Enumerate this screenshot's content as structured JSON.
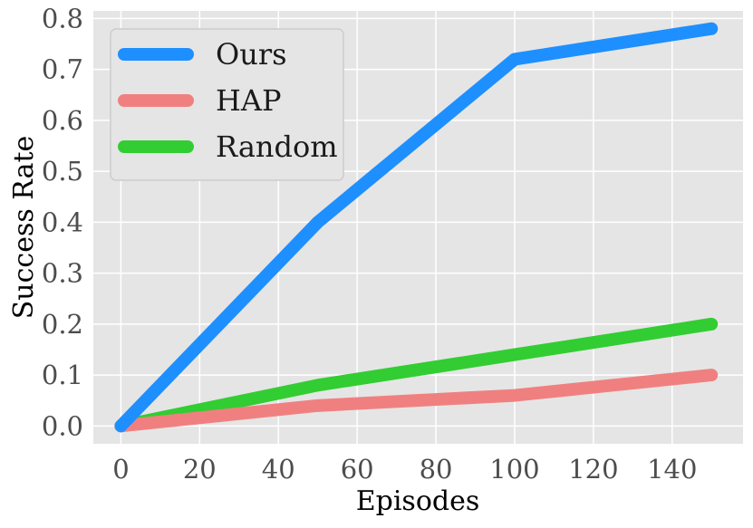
{
  "chart_data": {
    "type": "line",
    "xlabel": "Episodes",
    "ylabel": "Success Rate",
    "xlim": [
      -7,
      158
    ],
    "ylim": [
      -0.035,
      0.815
    ],
    "xticks": [
      0,
      20,
      40,
      60,
      80,
      100,
      120,
      140
    ],
    "yticks": [
      0.0,
      0.1,
      0.2,
      0.3,
      0.4,
      0.5,
      0.6,
      0.7,
      0.8
    ],
    "ytick_labels": [
      "0.0",
      "0.1",
      "0.2",
      "0.3",
      "0.4",
      "0.5",
      "0.6",
      "0.7",
      "0.8"
    ],
    "grid": true,
    "legend_position": "top-left",
    "x": [
      0,
      50,
      100,
      150
    ],
    "series": [
      {
        "name": "Ours",
        "values": [
          0.0,
          0.4,
          0.72,
          0.78
        ],
        "color": "#1e8fff"
      },
      {
        "name": "HAP",
        "values": [
          0.0,
          0.04,
          0.06,
          0.1
        ],
        "color": "#f08080"
      },
      {
        "name": "Random",
        "values": [
          0.0,
          0.08,
          0.14,
          0.2
        ],
        "color": "#32cd32"
      }
    ]
  }
}
